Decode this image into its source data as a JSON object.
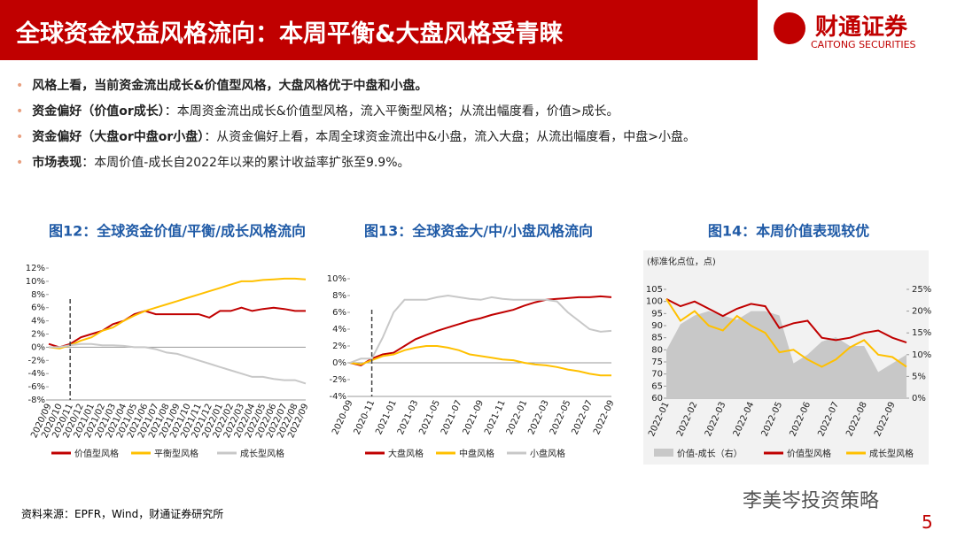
{
  "header": {
    "title": "全球资金权益风格流向：本周平衡&大盘风格受青睐",
    "logo": "财通证券",
    "logo_sub": "CAITONG SECURITIES"
  },
  "bullets": [
    {
      "lead": "风格上看，当前资金流出成长&价值型风格，大盘风格优于中盘和小盘。"
    },
    {
      "lead": "资金偏好（价值or成长）",
      "text": "：本周资金流出成长&价值型风格，流入平衡型风格；从流出幅度看，价值>成长。"
    },
    {
      "lead": "资金偏好（大盘or中盘or小盘）",
      "text": "：从资金偏好上看，本周全球资金流出中&小盘，流入大盘；从流出幅度看，中盘>小盘。"
    },
    {
      "lead": "市场表现",
      "text": "：本周价值-成长自2022年以来的累计收益率扩张至9.9%。"
    }
  ],
  "source": "资料来源：EPFR，Wind，财通证券研究所",
  "watermark": "李美岑投资策略",
  "page": "5",
  "chart_data": [
    {
      "type": "line",
      "title": "图12：全球资金价值/平衡/成长风格流向",
      "categories": [
        "2020/09",
        "2020/10",
        "2020/11",
        "2020/12",
        "2021/01",
        "2021/02",
        "2021/03",
        "2021/04",
        "2021/05",
        "2021/06",
        "2021/07",
        "2021/08",
        "2021/09",
        "2021/10",
        "2021/11",
        "2021/12",
        "2022/01",
        "2022/02",
        "2022/03",
        "2022/04",
        "2022/05",
        "2022/06",
        "2022/07",
        "2022/08",
        "2022/09"
      ],
      "series": [
        {
          "name": "价值型风格",
          "color": "#c00000",
          "values": [
            0.5,
            0,
            0.5,
            1.5,
            2,
            2.5,
            3.5,
            4,
            5,
            5.5,
            5,
            5,
            5,
            5,
            5,
            4.5,
            5.5,
            5.5,
            6,
            5.5,
            5.8,
            6,
            5.8,
            5.5,
            5.5
          ]
        },
        {
          "name": "平衡型风格",
          "color": "#ffc000",
          "values": [
            0,
            -0.2,
            0.3,
            1,
            1.5,
            2.5,
            3,
            4,
            4.8,
            5.5,
            6,
            6.5,
            7,
            7.5,
            8,
            8.5,
            9,
            9.5,
            10,
            10,
            10.2,
            10.3,
            10.4,
            10.4,
            10.3
          ]
        },
        {
          "name": "成长型风格",
          "color": "#c8c8c8",
          "values": [
            0,
            0,
            0.3,
            0.5,
            0.5,
            0.3,
            0.3,
            0.2,
            0,
            0,
            -0.3,
            -0.8,
            -1,
            -1.5,
            -2,
            -2.5,
            -3,
            -3.5,
            -4,
            -4.5,
            -4.5,
            -4.8,
            -5,
            -5,
            -5.5
          ]
        }
      ],
      "ylim": [
        -8,
        12
      ],
      "yticks": [
        {
          "value": -8,
          "label": "-8%"
        },
        {
          "value": -6,
          "label": "-6%"
        },
        {
          "value": -4,
          "label": "-4%"
        },
        {
          "value": -2,
          "label": "-2%"
        },
        {
          "value": 0,
          "label": "0%"
        },
        {
          "value": 2,
          "label": "2%"
        },
        {
          "value": 4,
          "label": "4%"
        },
        {
          "value": 6,
          "label": "6%"
        },
        {
          "value": 8,
          "label": "8%"
        },
        {
          "value": 10,
          "label": "10%"
        },
        {
          "value": 12,
          "label": "12%"
        }
      ]
    },
    {
      "type": "line",
      "title": "图13：全球资金大/中/小盘风格流向",
      "categories": [
        "2020-09",
        null,
        "2020-11",
        null,
        "2021-01",
        null,
        "2021-03",
        null,
        "2021-05",
        null,
        "2021-07",
        null,
        "2021-09",
        null,
        "2021-11",
        null,
        "2022-01",
        null,
        "2022-03",
        null,
        "2022-05",
        null,
        "2022-07",
        null,
        "2022-09"
      ],
      "series": [
        {
          "name": "大盘风格",
          "color": "#c00000",
          "values": [
            0,
            -0.3,
            0.5,
            1,
            1.2,
            2,
            2.8,
            3.3,
            3.8,
            4.2,
            4.6,
            5,
            5.3,
            5.7,
            6,
            6.3,
            6.8,
            7.2,
            7.5,
            7.6,
            7.7,
            7.8,
            7.8,
            7.9,
            7.8
          ]
        },
        {
          "name": "中盘风格",
          "color": "#ffc000",
          "values": [
            0,
            -0.2,
            0.3,
            0.8,
            1,
            1.5,
            1.8,
            2,
            2,
            1.8,
            1.5,
            1,
            0.8,
            0.6,
            0.4,
            0.3,
            0,
            -0.2,
            -0.3,
            -0.5,
            -0.8,
            -1,
            -1.3,
            -1.5,
            -1.5
          ]
        },
        {
          "name": "小盘风格",
          "color": "#c8c8c8",
          "values": [
            0,
            0.5,
            0.5,
            3,
            6,
            7.5,
            7.5,
            7.5,
            7.8,
            8,
            7.8,
            7.6,
            7.5,
            7.8,
            7.6,
            7.5,
            7.5,
            7.5,
            7.5,
            7.3,
            6,
            5,
            4,
            3.7,
            3.8
          ]
        }
      ],
      "ylim": [
        -4,
        10
      ],
      "yticks": [
        {
          "value": -4,
          "label": "-4%"
        },
        {
          "value": -2,
          "label": "-2%"
        },
        {
          "value": 0,
          "label": "0%"
        },
        {
          "value": 2,
          "label": "2%"
        },
        {
          "value": 4,
          "label": "4%"
        },
        {
          "value": 6,
          "label": "6%"
        },
        {
          "value": 8,
          "label": "8%"
        },
        {
          "value": 10,
          "label": "10%"
        }
      ]
    },
    {
      "type": "line",
      "title": "图14：本周价值表现较优",
      "ylabel": "(标准化点位，点)",
      "categories": [
        "2022-01",
        null,
        "2022-02",
        null,
        "2022-03",
        null,
        "2022-04",
        null,
        "2022-05",
        null,
        "2022-06",
        null,
        "2022-07",
        null,
        "2022-08",
        null,
        "2022-09",
        null
      ],
      "series": [
        {
          "name": "价值-成长（右）",
          "type": "area",
          "axis": "y2",
          "color": "#c8c8c8",
          "values": [
            11,
            17,
            19,
            20,
            19,
            18,
            20,
            20,
            19,
            8,
            10,
            13,
            14,
            12,
            12,
            6,
            8,
            10
          ]
        },
        {
          "name": "价值型风格",
          "color": "#c00000",
          "values": [
            101,
            98,
            100,
            97,
            94,
            97,
            99,
            98,
            89,
            91,
            92,
            85,
            84,
            85,
            87,
            88,
            85,
            83
          ]
        },
        {
          "name": "成长型风格",
          "color": "#ffc000",
          "values": [
            101,
            92,
            96,
            90,
            88,
            94,
            90,
            87,
            79,
            80,
            76,
            73,
            76,
            81,
            84,
            78,
            77,
            73
          ]
        }
      ],
      "ylim": [
        60,
        105
      ],
      "yticks": [
        60,
        65,
        70,
        75,
        80,
        85,
        90,
        95,
        100,
        105
      ],
      "y2lim": [
        0,
        25
      ],
      "y2ticks": [
        {
          "value": 0,
          "label": "0%"
        },
        {
          "value": 5,
          "label": "5%"
        },
        {
          "value": 10,
          "label": "10%"
        },
        {
          "value": 15,
          "label": "15%"
        },
        {
          "value": 20,
          "label": "20%"
        },
        {
          "value": 25,
          "label": "25%"
        }
      ]
    }
  ]
}
